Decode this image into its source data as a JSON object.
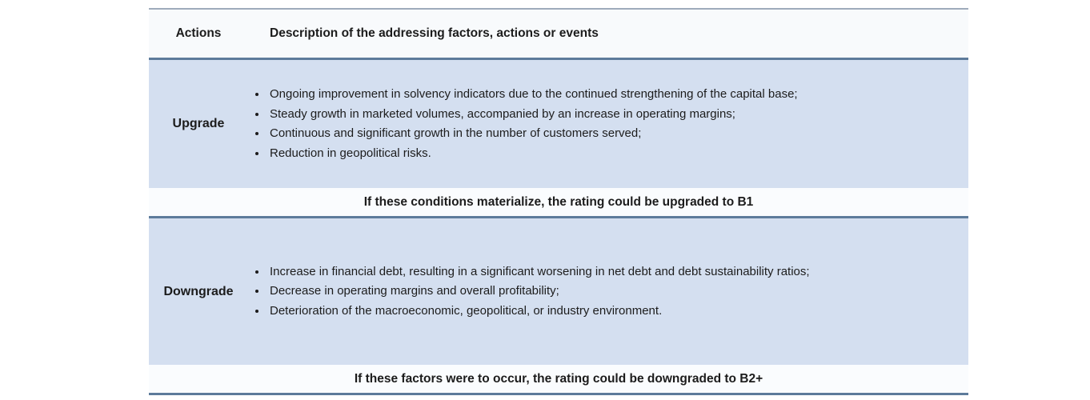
{
  "table": {
    "header": {
      "actions_label": "Actions",
      "description_label": "Description of the addressing factors, actions or events"
    },
    "sections": [
      {
        "action": "Upgrade",
        "bullets": [
          "Ongoing improvement in solvency indicators due to the continued strengthening of the capital base;",
          "Steady growth in marketed volumes, accompanied by an increase in operating margins;",
          "Continuous and significant growth in the number of customers served;",
          "Reduction in geopolitical risks."
        ],
        "note": "If these conditions materialize, the rating could be upgraded to B1"
      },
      {
        "action": "Downgrade",
        "bullets": [
          "Increase in financial debt, resulting in a significant worsening in net debt and debt sustainability ratios;",
          "Decrease in operating margins and overall profitability;",
          "Deterioration of the macroeconomic, geopolitical, or industry environment."
        ],
        "note": "If these factors were to occur, the rating could be downgraded to B2+"
      }
    ],
    "colors": {
      "section_bg": "#d4dff0",
      "band_bg": "#fafcfe",
      "header_bg": "#f8fafc",
      "rule_dark": "#5d7b9b",
      "rule_light": "#9fabbb",
      "text": "#1c1c1c"
    }
  }
}
